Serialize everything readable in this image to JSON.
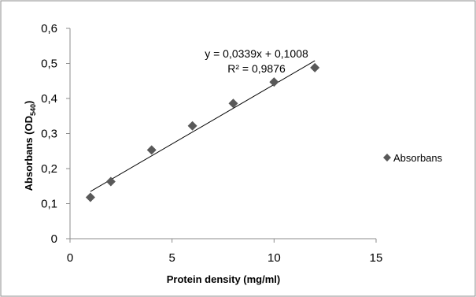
{
  "chart_data": {
    "type": "scatter",
    "series": [
      {
        "name": "Absorbans",
        "color": "#595959",
        "marker": "diamond",
        "points": [
          {
            "x": 1,
            "y": 0.118
          },
          {
            "x": 2,
            "y": 0.163
          },
          {
            "x": 4,
            "y": 0.253
          },
          {
            "x": 6,
            "y": 0.322
          },
          {
            "x": 8,
            "y": 0.386
          },
          {
            "x": 10,
            "y": 0.447
          },
          {
            "x": 12,
            "y": 0.488
          }
        ]
      }
    ],
    "trendline": {
      "type": "linear",
      "slope": 0.0339,
      "intercept": 0.1008,
      "x_range": [
        1,
        12
      ],
      "equation_label": "y = 0,0339x + 0,1008",
      "r2_label": "R² = 0,9876"
    },
    "xlabel": "Protein density (mg/ml)",
    "ylabel_main": "Absorbans (OD",
    "ylabel_sub": "540",
    "ylabel_close": ")",
    "xlim": [
      0,
      15
    ],
    "ylim": [
      0,
      0.6
    ],
    "x_ticks": [
      {
        "value": 0,
        "label": "0"
      },
      {
        "value": 5,
        "label": "5"
      },
      {
        "value": 10,
        "label": "10"
      },
      {
        "value": 15,
        "label": "15"
      }
    ],
    "y_ticks": [
      {
        "value": 0,
        "label": "0"
      },
      {
        "value": 0.1,
        "label": "0,1"
      },
      {
        "value": 0.2,
        "label": "0,2"
      },
      {
        "value": 0.3,
        "label": "0,3"
      },
      {
        "value": 0.4,
        "label": "0,4"
      },
      {
        "value": 0.5,
        "label": "0,5"
      },
      {
        "value": 0.6,
        "label": "0,6"
      }
    ],
    "grid": false,
    "legend_position": "right",
    "legend_label": "Absorbans"
  }
}
